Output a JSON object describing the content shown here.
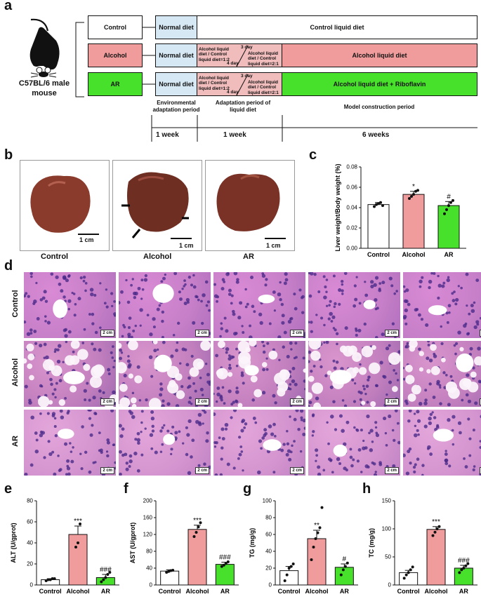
{
  "panel_a": {
    "label": "a",
    "mouse": "C57BL/6 male mouse",
    "groups": [
      {
        "name": "Control",
        "color": "#ffffff",
        "stage1": "Normal diet",
        "final": "Control liquid diet"
      },
      {
        "name": "Alcohol",
        "color": "#f19c9c",
        "stage1": "Normal diet",
        "final": "Alcohol liquid diet"
      },
      {
        "name": "AR",
        "color": "#47e02a",
        "stage1": "Normal diet",
        "final": "Alcohol liquid diet + Riboflavin"
      }
    ],
    "adapt_left": "Alcohol liquid diet / Control liquid diet=1:2",
    "adapt_right": "Alcohol liquid diet / Control liquid diet=2:1",
    "day_top": "3 day",
    "day_bottom": "4 day",
    "periods": [
      "Environmental adaptation period",
      "Adaptation period of liquid diet",
      "Model construction period"
    ],
    "durations": [
      "1 week",
      "1 week",
      "6 weeks"
    ],
    "colors": {
      "normal_diet": "#d6e8f4",
      "alcohol": "#f19c9c",
      "ar": "#47e02a"
    }
  },
  "panel_b": {
    "label": "b",
    "images": [
      {
        "caption": "Control",
        "scale": "1 cm"
      },
      {
        "caption": "Alcohol",
        "scale": "1 cm"
      },
      {
        "caption": "AR",
        "scale": "1 cm"
      }
    ]
  },
  "panel_d": {
    "label": "d",
    "rows": [
      "Control",
      "Alcohol",
      "AR"
    ],
    "scale": "2 cm"
  },
  "chart_data": [
    {
      "panel": "c",
      "type": "bar",
      "categories": [
        "Control",
        "Alcohol",
        "AR"
      ],
      "values": [
        0.043,
        0.053,
        0.042
      ],
      "errors": [
        0.002,
        0.003,
        0.004
      ],
      "points": [
        [
          0.041,
          0.043,
          0.044,
          0.045,
          0.042
        ],
        [
          0.049,
          0.051,
          0.053,
          0.056,
          0.057
        ],
        [
          0.034,
          0.038,
          0.042,
          0.045,
          0.047
        ]
      ],
      "annotations": [
        "",
        "*",
        "#"
      ],
      "ylabel": "Liver weight/Body weight (%)",
      "ylim": [
        0,
        0.08
      ],
      "yticks": [
        "0.00",
        "0.02",
        "0.04",
        "0.06",
        "0.08"
      ],
      "colors": [
        "#ffffff",
        "#f19c9c",
        "#47e02a"
      ]
    },
    {
      "panel": "e",
      "type": "bar",
      "categories": [
        "Control",
        "Alcohol",
        "AR"
      ],
      "values": [
        5,
        48,
        7
      ],
      "errors": [
        1,
        8,
        3
      ],
      "points": [
        [
          4,
          5,
          5,
          6,
          6
        ],
        [
          36,
          40,
          58
        ],
        [
          3,
          5,
          7,
          10,
          12
        ]
      ],
      "annotations": [
        "",
        "***",
        "###"
      ],
      "ylabel": "ALT (U/gprot)",
      "ylim": [
        0,
        80
      ],
      "yticks": [
        "0",
        "20",
        "40",
        "60",
        "80"
      ],
      "colors": [
        "#ffffff",
        "#f19c9c",
        "#47e02a"
      ]
    },
    {
      "panel": "f",
      "type": "bar",
      "categories": [
        "Control",
        "Alcohol",
        "AR"
      ],
      "values": [
        33,
        132,
        49
      ],
      "errors": [
        3,
        10,
        5
      ],
      "points": [
        [
          30,
          32,
          34,
          35
        ],
        [
          115,
          125,
          138,
          148
        ],
        [
          44,
          47,
          51,
          55
        ]
      ],
      "annotations": [
        "",
        "***",
        "###"
      ],
      "ylabel": "AST (U/gprot)",
      "ylim": [
        0,
        200
      ],
      "yticks": [
        "0",
        "40",
        "80",
        "120",
        "160",
        "200"
      ],
      "colors": [
        "#ffffff",
        "#f19c9c",
        "#47e02a"
      ]
    },
    {
      "panel": "g",
      "type": "bar",
      "categories": [
        "Control",
        "Alcohol",
        "AR"
      ],
      "values": [
        17,
        55,
        21
      ],
      "errors": [
        5,
        10,
        4
      ],
      "points": [
        [
          5,
          12,
          20,
          22,
          25
        ],
        [
          30,
          45,
          55,
          62,
          68,
          92
        ],
        [
          12,
          18,
          22,
          26
        ]
      ],
      "annotations": [
        "",
        "**",
        "#"
      ],
      "ylabel": "TG (mg/g)",
      "ylim": [
        0,
        100
      ],
      "yticks": [
        "0",
        "20",
        "40",
        "60",
        "80",
        "100"
      ],
      "colors": [
        "#ffffff",
        "#f19c9c",
        "#47e02a"
      ]
    },
    {
      "panel": "h",
      "type": "bar",
      "categories": [
        "Control",
        "Alcohol",
        "AR"
      ],
      "values": [
        22,
        99,
        30
      ],
      "errors": [
        4,
        5,
        5
      ],
      "points": [
        [
          12,
          18,
          22,
          27,
          32
        ],
        [
          88,
          94,
          100,
          104
        ],
        [
          22,
          27,
          30,
          34,
          38
        ]
      ],
      "annotations": [
        "",
        "***",
        "###"
      ],
      "ylabel": "TC (mg/g)",
      "ylim": [
        0,
        150
      ],
      "yticks": [
        "0",
        "50",
        "100",
        "150"
      ],
      "colors": [
        "#ffffff",
        "#f19c9c",
        "#47e02a"
      ]
    }
  ]
}
